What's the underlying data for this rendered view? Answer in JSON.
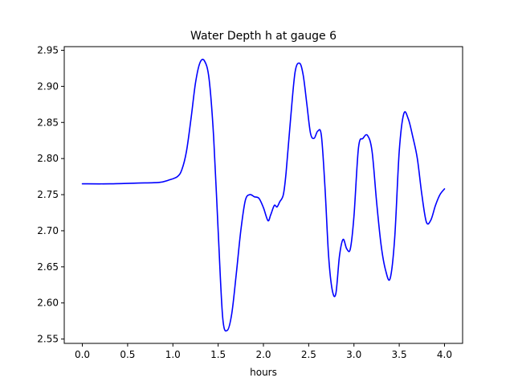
{
  "chart_data": {
    "type": "line",
    "title": "Water Depth h at gauge 6",
    "xlabel": "hours",
    "ylabel": "",
    "xlim": [
      -0.2,
      4.2
    ],
    "ylim": [
      2.544,
      2.955
    ],
    "x_ticks": [
      0.0,
      0.5,
      1.0,
      1.5,
      2.0,
      2.5,
      3.0,
      3.5,
      4.0
    ],
    "x_tick_labels": [
      "0.0",
      "0.5",
      "1.0",
      "1.5",
      "2.0",
      "2.5",
      "3.0",
      "3.5",
      "4.0"
    ],
    "y_ticks": [
      2.55,
      2.6,
      2.65,
      2.7,
      2.75,
      2.8,
      2.85,
      2.9,
      2.95
    ],
    "y_tick_labels": [
      "2.55",
      "2.60",
      "2.65",
      "2.70",
      "2.75",
      "2.80",
      "2.85",
      "2.90",
      "2.95"
    ],
    "grid": false,
    "legend": "none",
    "series": [
      {
        "color": "#0000ff",
        "x": [
          0.0,
          0.3,
          0.6,
          0.85,
          0.95,
          1.05,
          1.1,
          1.15,
          1.2,
          1.25,
          1.3,
          1.35,
          1.4,
          1.45,
          1.5,
          1.55,
          1.6,
          1.65,
          1.7,
          1.75,
          1.8,
          1.85,
          1.9,
          1.95,
          2.0,
          2.05,
          2.08,
          2.12,
          2.15,
          2.18,
          2.22,
          2.25,
          2.3,
          2.35,
          2.4,
          2.44,
          2.48,
          2.52,
          2.56,
          2.6,
          2.64,
          2.68,
          2.72,
          2.76,
          2.8,
          2.84,
          2.88,
          2.92,
          2.96,
          3.0,
          3.05,
          3.1,
          3.15,
          3.2,
          3.25,
          3.3,
          3.35,
          3.4,
          3.45,
          3.5,
          3.55,
          3.6,
          3.65,
          3.7,
          3.75,
          3.8,
          3.85,
          3.9,
          3.95,
          4.0
        ],
        "y": [
          2.765,
          2.765,
          2.766,
          2.767,
          2.77,
          2.775,
          2.785,
          2.81,
          2.855,
          2.905,
          2.933,
          2.935,
          2.91,
          2.83,
          2.7,
          2.58,
          2.562,
          2.585,
          2.64,
          2.7,
          2.742,
          2.75,
          2.747,
          2.745,
          2.732,
          2.714,
          2.722,
          2.735,
          2.733,
          2.74,
          2.75,
          2.78,
          2.855,
          2.92,
          2.932,
          2.915,
          2.875,
          2.835,
          2.828,
          2.838,
          2.832,
          2.76,
          2.665,
          2.618,
          2.613,
          2.665,
          2.688,
          2.675,
          2.675,
          2.72,
          2.815,
          2.828,
          2.832,
          2.81,
          2.74,
          2.68,
          2.645,
          2.634,
          2.69,
          2.81,
          2.862,
          2.855,
          2.83,
          2.8,
          2.75,
          2.712,
          2.715,
          2.735,
          2.75,
          2.758
        ]
      }
    ]
  }
}
